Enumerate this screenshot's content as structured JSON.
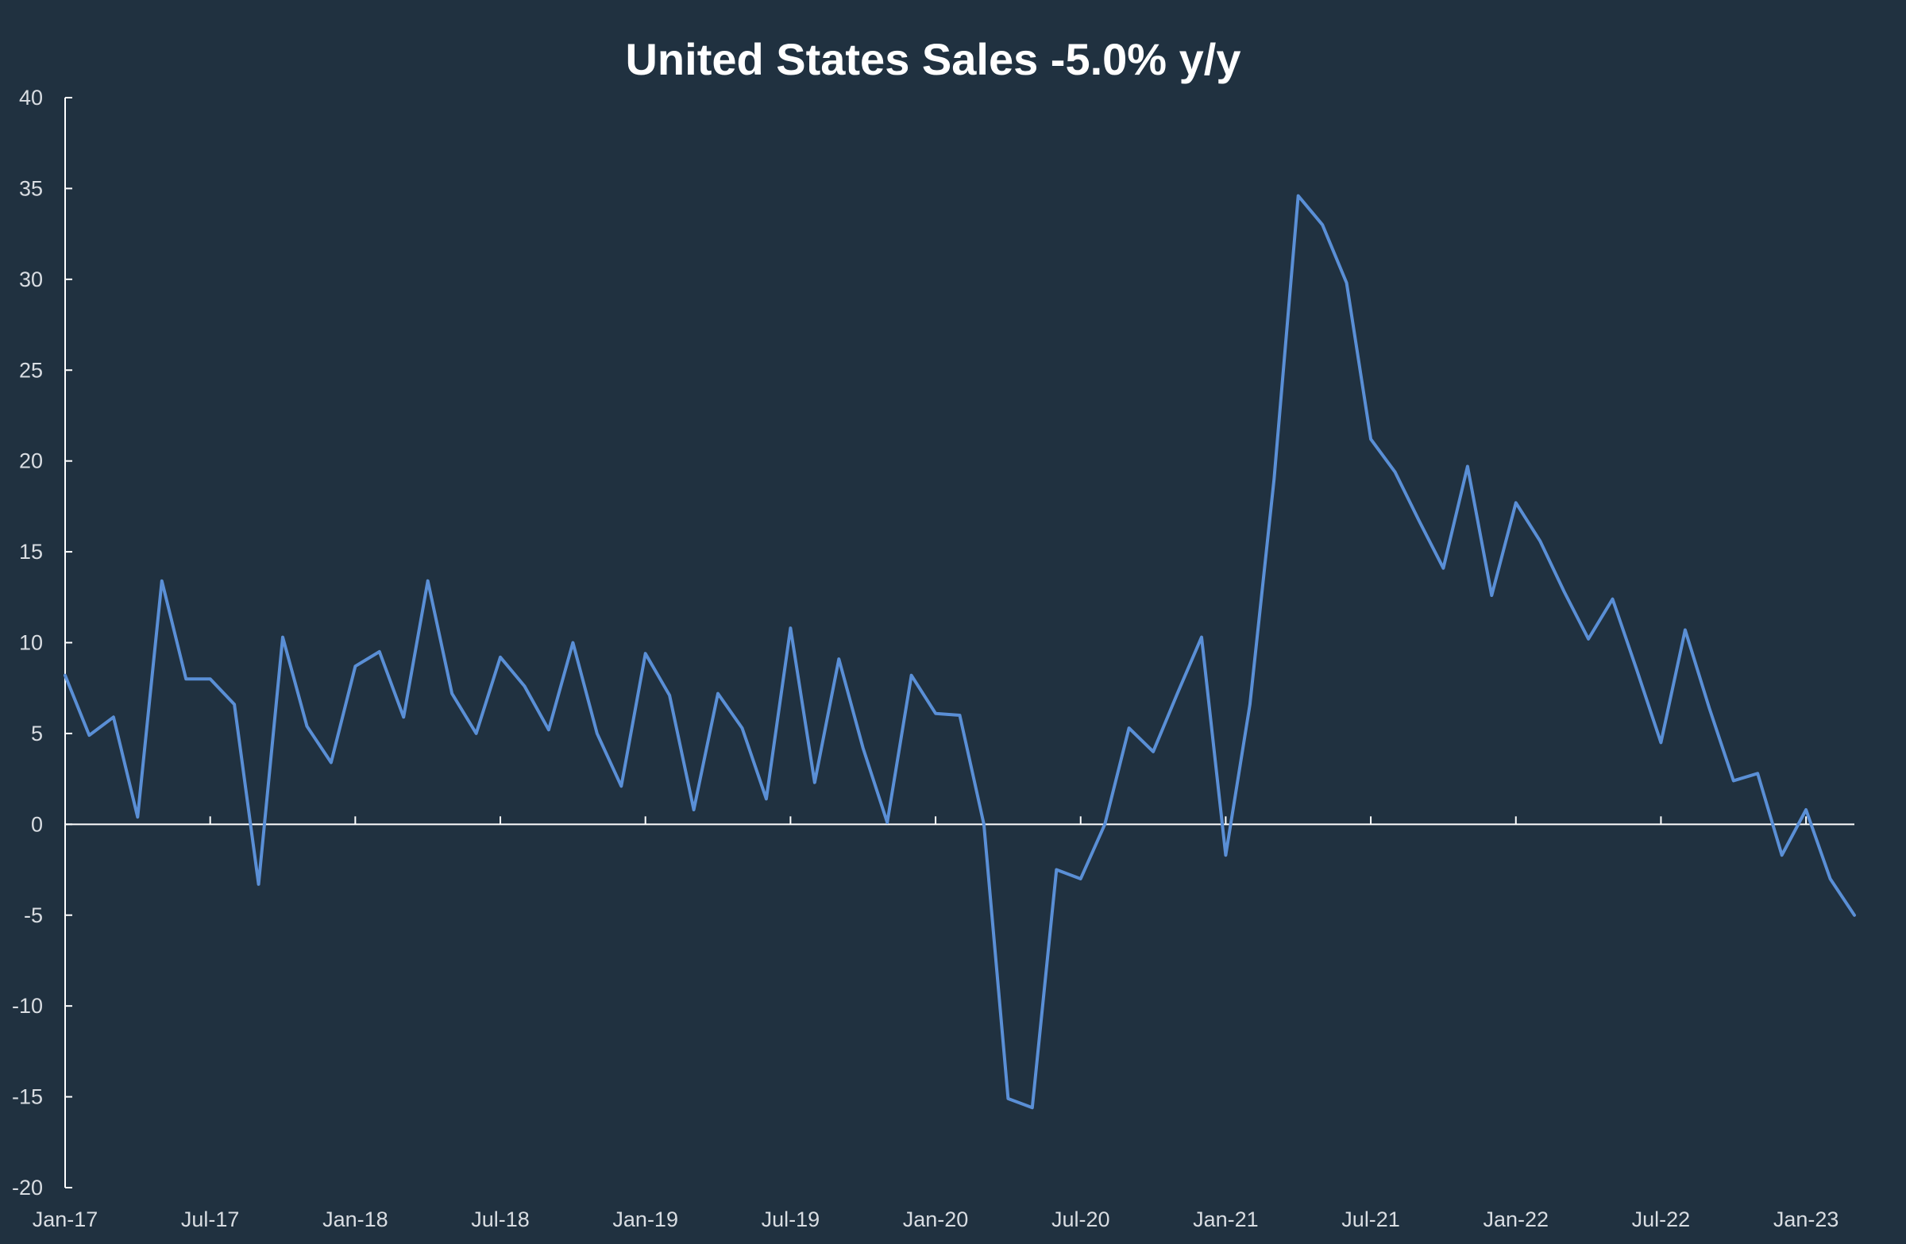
{
  "chart_data": {
    "type": "line",
    "title": "United States Sales -5.0% y/y",
    "xlabel": "",
    "ylabel": "",
    "ylim": [
      -20,
      40
    ],
    "yticks": [
      40,
      35,
      30,
      25,
      20,
      15,
      10,
      5,
      0,
      -5,
      -10,
      -15,
      -20
    ],
    "x_tick_labels": [
      "Jan-17",
      "Jul-17",
      "Jan-18",
      "Jul-18",
      "Jan-19",
      "Jul-19",
      "Jan-20",
      "Jul-20",
      "Jan-21",
      "Jul-21",
      "Jan-22",
      "Jul-22",
      "Jan-23"
    ],
    "x_start": "2017-01",
    "x_end": "2023-03",
    "grid": false,
    "legend": "none",
    "line_color": "#5a8fd6",
    "background_color": "#203140",
    "series": [
      {
        "values": [
          8.2,
          4.9,
          5.9,
          0.4,
          13.4,
          8.0,
          8.0,
          6.6,
          -3.3,
          10.3,
          5.4,
          3.4,
          8.7,
          9.5,
          5.9,
          13.4,
          7.2,
          5.0,
          9.2,
          7.6,
          5.2,
          10.0,
          5.0,
          2.1,
          9.4,
          7.1,
          0.8,
          7.2,
          5.3,
          1.4,
          10.8,
          2.3,
          9.1,
          4.2,
          0.1,
          8.2,
          6.1,
          6.0,
          0.0,
          -15.1,
          -15.6,
          -2.5,
          -3.0,
          0.0,
          5.3,
          4.0,
          7.2,
          10.3,
          -1.7,
          6.6,
          19.0,
          34.6,
          33.0,
          29.8,
          21.2,
          19.4,
          16.7,
          14.1,
          19.7,
          12.6,
          17.7,
          15.6,
          12.8,
          10.2,
          12.4,
          8.5,
          4.5,
          10.7,
          6.4,
          2.4,
          2.8,
          -1.7,
          0.8,
          -3.0,
          -5.0
        ]
      }
    ]
  }
}
